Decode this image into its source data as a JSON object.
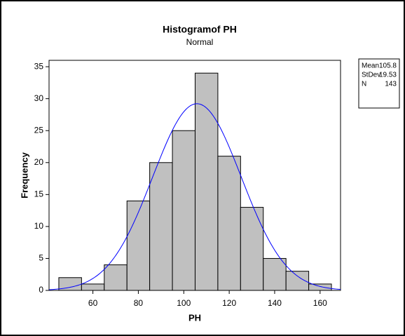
{
  "chart_data": {
    "type": "histogram",
    "title": "Histogramof PH",
    "subtitle": "Normal",
    "x_label": "PH",
    "y_label": "Frequency",
    "bins": [
      45,
      55,
      65,
      75,
      85,
      95,
      105,
      115,
      125,
      135,
      145,
      155,
      165
    ],
    "values": [
      2,
      1,
      4,
      14,
      20,
      25,
      34,
      21,
      13,
      5,
      3,
      1
    ],
    "color": "#c0c0c0",
    "curve_color": "#0000ff",
    "xlim": [
      40.7,
      169
    ],
    "ylim": [
      0,
      36
    ],
    "xticks": [
      60,
      80,
      100,
      120,
      140,
      160
    ],
    "yticks": [
      0,
      5,
      10,
      15,
      20,
      25,
      30,
      35
    ],
    "stats": [
      {
        "label": "Mean",
        "value": 105.8
      },
      {
        "label": "StDev",
        "value": 19.53
      },
      {
        "label": "N",
        "value": 143
      }
    ]
  }
}
